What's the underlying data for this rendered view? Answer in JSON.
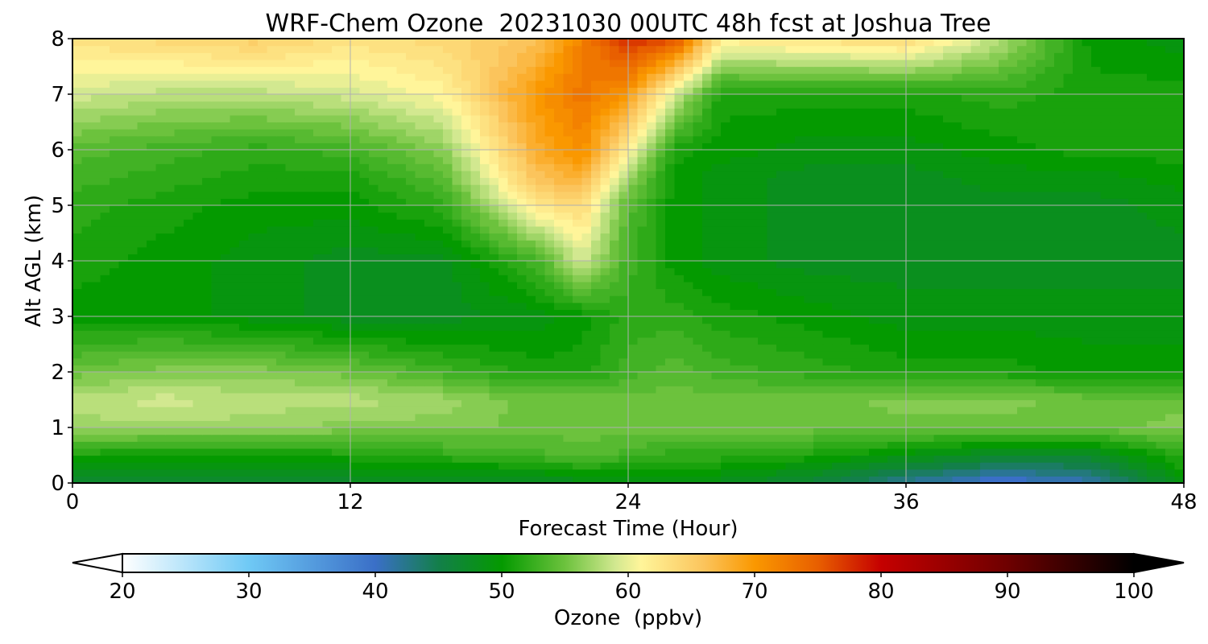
{
  "chart_data": {
    "type": "heatmap",
    "title": "WRF-Chem Ozone  20231030 00UTC 48h fcst at Joshua Tree",
    "xlabel": "Forecast Time (Hour)",
    "ylabel": "Alt AGL (km)",
    "xlim": [
      0,
      48
    ],
    "ylim": [
      0,
      8
    ],
    "x_ticks": [
      0,
      12,
      24,
      36,
      48
    ],
    "y_ticks": [
      0,
      1,
      2,
      3,
      4,
      5,
      6,
      7,
      8
    ],
    "grid": true,
    "x": [
      0,
      4,
      8,
      12,
      16,
      20,
      22,
      24,
      26,
      28,
      32,
      36,
      40,
      44,
      48
    ],
    "y": [
      0,
      0.5,
      1,
      1.5,
      2,
      3,
      4,
      5,
      5.5,
      6,
      7,
      8
    ],
    "z": [
      [
        47,
        47,
        47,
        47,
        47,
        47,
        48,
        48,
        48,
        48,
        46,
        42,
        39,
        41,
        49
      ],
      [
        51,
        50,
        50,
        51,
        52,
        53,
        54,
        53,
        52,
        52,
        51,
        49,
        47,
        47,
        52
      ],
      [
        57,
        57,
        57,
        56,
        56,
        55,
        55,
        55,
        55,
        55,
        55,
        55,
        55,
        55,
        56
      ],
      [
        58,
        59,
        58,
        58,
        57,
        55,
        55,
        55,
        55,
        55,
        55,
        56,
        56,
        55,
        55
      ],
      [
        55,
        56,
        56,
        55,
        53,
        51,
        51,
        53,
        54,
        53,
        52,
        51,
        51,
        50,
        50
      ],
      [
        50,
        50,
        49,
        48,
        48,
        49,
        50,
        52,
        52,
        51,
        50,
        49,
        49,
        49,
        49
      ],
      [
        51,
        50,
        49,
        48,
        48,
        53,
        59,
        53,
        50,
        49,
        48,
        48,
        48,
        48,
        48
      ],
      [
        52,
        51,
        50,
        50,
        52,
        62,
        64,
        54,
        50,
        49,
        48,
        48,
        48,
        48,
        49
      ],
      [
        53,
        52,
        51,
        51,
        54,
        66,
        68,
        57,
        50,
        49,
        48,
        48,
        49,
        49,
        50
      ],
      [
        54,
        53,
        52,
        53,
        56,
        68,
        71,
        62,
        51,
        50,
        49,
        49,
        50,
        51,
        51
      ],
      [
        59,
        58,
        58,
        59,
        61,
        70,
        73,
        70,
        59,
        51,
        51,
        51,
        52,
        51,
        51
      ],
      [
        63,
        64,
        65,
        63,
        64,
        66,
        72,
        78,
        76,
        62,
        63,
        64,
        58,
        50,
        49
      ]
    ],
    "colorbar": {
      "label": "Ozone  (ppbv)",
      "min": 20,
      "max": 100,
      "ticks": [
        20,
        30,
        40,
        50,
        60,
        70,
        80,
        90,
        100
      ],
      "extend": "both",
      "stops": [
        [
          20,
          "#ffffff"
        ],
        [
          30,
          "#6fc9f5"
        ],
        [
          40,
          "#3a6fc7"
        ],
        [
          45,
          "#137f4a"
        ],
        [
          50,
          "#049a00"
        ],
        [
          55,
          "#6cc23d"
        ],
        [
          59,
          "#d2e890"
        ],
        [
          61,
          "#fff59a"
        ],
        [
          66,
          "#fbc45c"
        ],
        [
          70,
          "#fa9800"
        ],
        [
          75,
          "#e85f00"
        ],
        [
          80,
          "#c50000"
        ],
        [
          90,
          "#6e0000"
        ],
        [
          100,
          "#000000"
        ]
      ]
    }
  }
}
